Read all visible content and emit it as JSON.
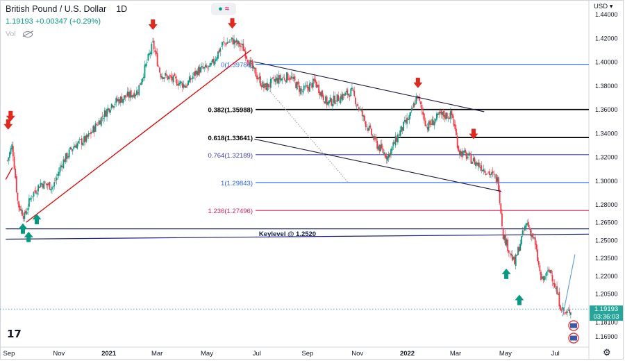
{
  "header": {
    "symbol": "British Pound / U.S. Dollar",
    "interval": "1D",
    "price_change": "1.19193 +0.00347 (+0.29%)",
    "volume_label": "Vol",
    "currency": "USD"
  },
  "price_badge": {
    "price": "1.19193",
    "countdown": "03:36:03"
  },
  "logo": "17",
  "colors": {
    "up": "#089981",
    "down": "#f23645",
    "trend_red": "#e00000",
    "fib_blue": "#2962ff",
    "fib_black": "#000000",
    "fib_purple": "#673ab7",
    "fib_crimson": "#d81b60",
    "price_dotted": "#26a69a"
  },
  "chart_data": {
    "type": "candlestick",
    "y_axis": {
      "range": [
        1.16,
        1.452
      ],
      "ticks": [
        "1.44000",
        "1.42000",
        "1.40000",
        "1.38000",
        "1.36000",
        "1.34000",
        "1.32000",
        "1.30000",
        "1.28000",
        "1.26500",
        "1.25000",
        "1.23500",
        "1.22000",
        "1.20500",
        "1.18100",
        "1.16900"
      ]
    },
    "x_axis": {
      "labels": [
        "Sep",
        "Nov",
        "2021",
        "Mar",
        "May",
        "Jul",
        "Sep",
        "Nov",
        "2022",
        "Mar",
        "May",
        "Jul"
      ]
    },
    "series_close": [
      [
        "2020-08-30",
        1.317
      ],
      [
        "2020-09-05",
        1.33
      ],
      [
        "2020-09-12",
        1.28
      ],
      [
        "2020-09-20",
        1.27
      ],
      [
        "2020-09-28",
        1.287
      ],
      [
        "2020-10-10",
        1.298
      ],
      [
        "2020-10-25",
        1.295
      ],
      [
        "2020-11-05",
        1.315
      ],
      [
        "2020-11-20",
        1.33
      ],
      [
        "2020-12-05",
        1.335
      ],
      [
        "2020-12-20",
        1.35
      ],
      [
        "2021-01-05",
        1.365
      ],
      [
        "2021-01-20",
        1.37
      ],
      [
        "2021-02-05",
        1.375
      ],
      [
        "2021-02-24",
        1.415
      ],
      [
        "2021-03-05",
        1.39
      ],
      [
        "2021-03-20",
        1.385
      ],
      [
        "2021-04-05",
        1.38
      ],
      [
        "2021-04-20",
        1.393
      ],
      [
        "2021-05-05",
        1.395
      ],
      [
        "2021-05-20",
        1.415
      ],
      [
        "2021-06-01",
        1.418
      ],
      [
        "2021-06-14",
        1.412
      ],
      [
        "2021-06-25",
        1.395
      ],
      [
        "2021-07-10",
        1.378
      ],
      [
        "2021-07-25",
        1.385
      ],
      [
        "2021-08-10",
        1.388
      ],
      [
        "2021-08-25",
        1.375
      ],
      [
        "2021-09-10",
        1.383
      ],
      [
        "2021-09-25",
        1.365
      ],
      [
        "2021-10-10",
        1.37
      ],
      [
        "2021-10-25",
        1.375
      ],
      [
        "2021-11-10",
        1.35
      ],
      [
        "2021-11-25",
        1.33
      ],
      [
        "2021-12-08",
        1.32
      ],
      [
        "2021-12-22",
        1.34
      ],
      [
        "2022-01-05",
        1.355
      ],
      [
        "2022-01-13",
        1.372
      ],
      [
        "2022-01-25",
        1.345
      ],
      [
        "2022-02-10",
        1.355
      ],
      [
        "2022-02-25",
        1.355
      ],
      [
        "2022-03-05",
        1.325
      ],
      [
        "2022-03-20",
        1.318
      ],
      [
        "2022-04-05",
        1.31
      ],
      [
        "2022-04-22",
        1.3
      ],
      [
        "2022-04-28",
        1.255
      ],
      [
        "2022-05-12",
        1.23
      ],
      [
        "2022-05-20",
        1.25
      ],
      [
        "2022-05-27",
        1.265
      ],
      [
        "2022-06-05",
        1.25
      ],
      [
        "2022-06-14",
        1.215
      ],
      [
        "2022-06-25",
        1.225
      ],
      [
        "2022-07-07",
        1.195
      ],
      [
        "2022-07-14",
        1.187
      ],
      [
        "2022-07-20",
        1.192
      ]
    ],
    "horizontal_lines": [
      {
        "label": "0(1.39786)",
        "value": 1.39786,
        "color": "#2962ff"
      },
      {
        "label": "0.382(1.35988)",
        "value": 1.35988,
        "color": "#000000"
      },
      {
        "label": "0.618(1.33641)",
        "value": 1.33641,
        "color": "#000000"
      },
      {
        "label": "0.764(1.32189)",
        "value": 1.32189,
        "color": "#3f3fb5"
      },
      {
        "label": "1(1.29843)",
        "value": 1.29843,
        "color": "#2962ff"
      },
      {
        "label": "1.236(1.27496)",
        "value": 1.27496,
        "color": "#d81b60"
      }
    ],
    "annotations": {
      "keylevel": "Keylevel @ 1.2520"
    },
    "keylevel_lines": [
      {
        "points": [
          [
            "2020-08-28",
            1.2595
          ],
          [
            "2022-07-31",
            1.2595
          ]
        ]
      },
      {
        "points": [
          [
            "2020-08-28",
            1.2508
          ],
          [
            "2022-07-31",
            1.255
          ]
        ]
      }
    ],
    "trendlines": [
      {
        "color": "#e00000",
        "points": [
          [
            "2020-09-22",
            1.265
          ],
          [
            "2021-06-24",
            1.41
          ]
        ]
      },
      {
        "color": "#e00000",
        "points": [
          [
            "2020-08-28",
            1.301
          ],
          [
            "2020-09-05",
            1.311
          ]
        ]
      },
      {
        "color": "#1a1a40",
        "points": [
          [
            "2021-06-28",
            1.4
          ],
          [
            "2022-04-05",
            1.358
          ]
        ]
      },
      {
        "color": "#1a1a40",
        "points": [
          [
            "2021-06-28",
            1.335
          ],
          [
            "2022-04-26",
            1.291
          ]
        ]
      },
      {
        "color": "#a0a0a0",
        "dashed": true,
        "points": [
          [
            "2021-07-05",
            1.385
          ],
          [
            "2021-10-20",
            1.299
          ]
        ]
      },
      {
        "color": "#5b9bd5",
        "points": [
          [
            "2022-07-10",
            1.186
          ],
          [
            "2022-07-25",
            1.238
          ]
        ]
      }
    ],
    "arrows": [
      {
        "dir": "down",
        "x": "2020-08-31",
        "y": 1.347
      },
      {
        "dir": "down",
        "x": "2020-09-03",
        "y": 1.354
      },
      {
        "dir": "up",
        "x": "2020-09-18",
        "y": 1.26
      },
      {
        "dir": "up",
        "x": "2020-09-25",
        "y": 1.253
      },
      {
        "dir": "up",
        "x": "2020-10-05",
        "y": 1.268
      },
      {
        "dir": "down",
        "x": "2021-02-24",
        "y": 1.431
      },
      {
        "dir": "down",
        "x": "2021-06-01",
        "y": 1.432
      },
      {
        "dir": "down",
        "x": "2022-01-14",
        "y": 1.382
      },
      {
        "dir": "down",
        "x": "2022-03-23",
        "y": 1.339
      },
      {
        "dir": "up",
        "x": "2022-05-02",
        "y": 1.222
      },
      {
        "dir": "up",
        "x": "2022-05-18",
        "y": 1.2
      }
    ]
  }
}
